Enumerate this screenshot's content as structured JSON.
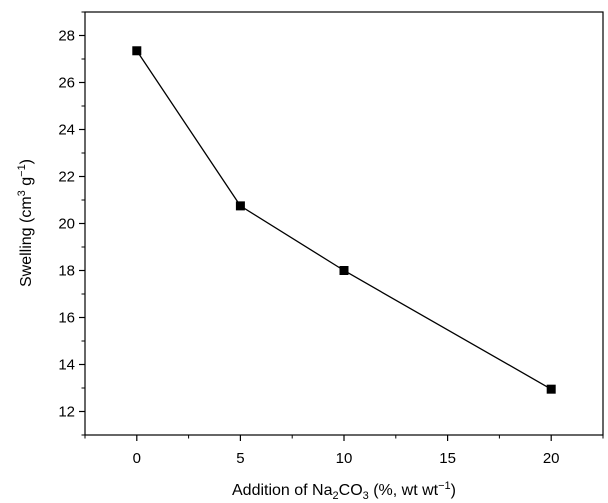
{
  "chart_data": {
    "type": "line",
    "xlabel": {
      "prefix": "Addition of Na",
      "sub1": "2",
      "mid": "CO",
      "sub2": "3",
      "suffix_a": " (%, wt wt",
      "sup": "−1",
      "suffix_b": ")"
    },
    "ylabel": {
      "prefix": "Swelling (cm",
      "sup1": "3",
      "mid": " g",
      "sup2": "−1",
      "suffix": ")"
    },
    "xlim": [
      -2.5,
      22.5
    ],
    "ylim": [
      11,
      29
    ],
    "xticks": [
      0,
      5,
      10,
      15,
      20
    ],
    "yticks": [
      12,
      14,
      16,
      18,
      20,
      22,
      24,
      26,
      28
    ],
    "series": [
      {
        "marker": "square",
        "color": "#000000",
        "x": [
          0,
          5,
          10,
          20
        ],
        "y": [
          27.35,
          20.75,
          18.0,
          12.95
        ]
      }
    ],
    "grid": false,
    "legend": "none"
  }
}
